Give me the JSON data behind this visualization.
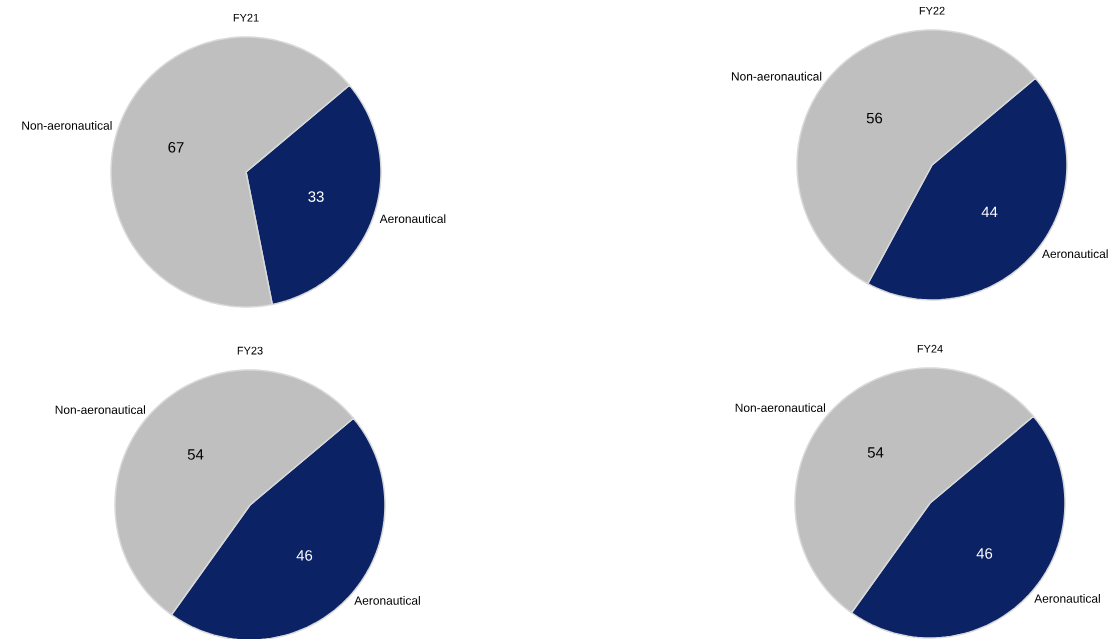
{
  "chart_data": [
    {
      "type": "pie",
      "title": "FY21",
      "categories": [
        "Aeronautical",
        "Non-aeronautical"
      ],
      "values": [
        33,
        67
      ],
      "colors": [
        "#0b2265",
        "#bfbfbf"
      ],
      "data_labels": true
    },
    {
      "type": "pie",
      "title": "FY22",
      "categories": [
        "Aeronautical",
        "Non-aeronautical"
      ],
      "values": [
        44,
        56
      ],
      "colors": [
        "#0b2265",
        "#bfbfbf"
      ],
      "data_labels": true
    },
    {
      "type": "pie",
      "title": "FY23",
      "categories": [
        "Aeronautical",
        "Non-aeronautical"
      ],
      "values": [
        46,
        54
      ],
      "colors": [
        "#0b2265",
        "#bfbfbf"
      ],
      "data_labels": true
    },
    {
      "type": "pie",
      "title": "FY24",
      "categories": [
        "Aeronautical",
        "Non-aeronautical"
      ],
      "values": [
        46,
        54
      ],
      "colors": [
        "#0b2265",
        "#bfbfbf"
      ],
      "data_labels": true
    }
  ]
}
